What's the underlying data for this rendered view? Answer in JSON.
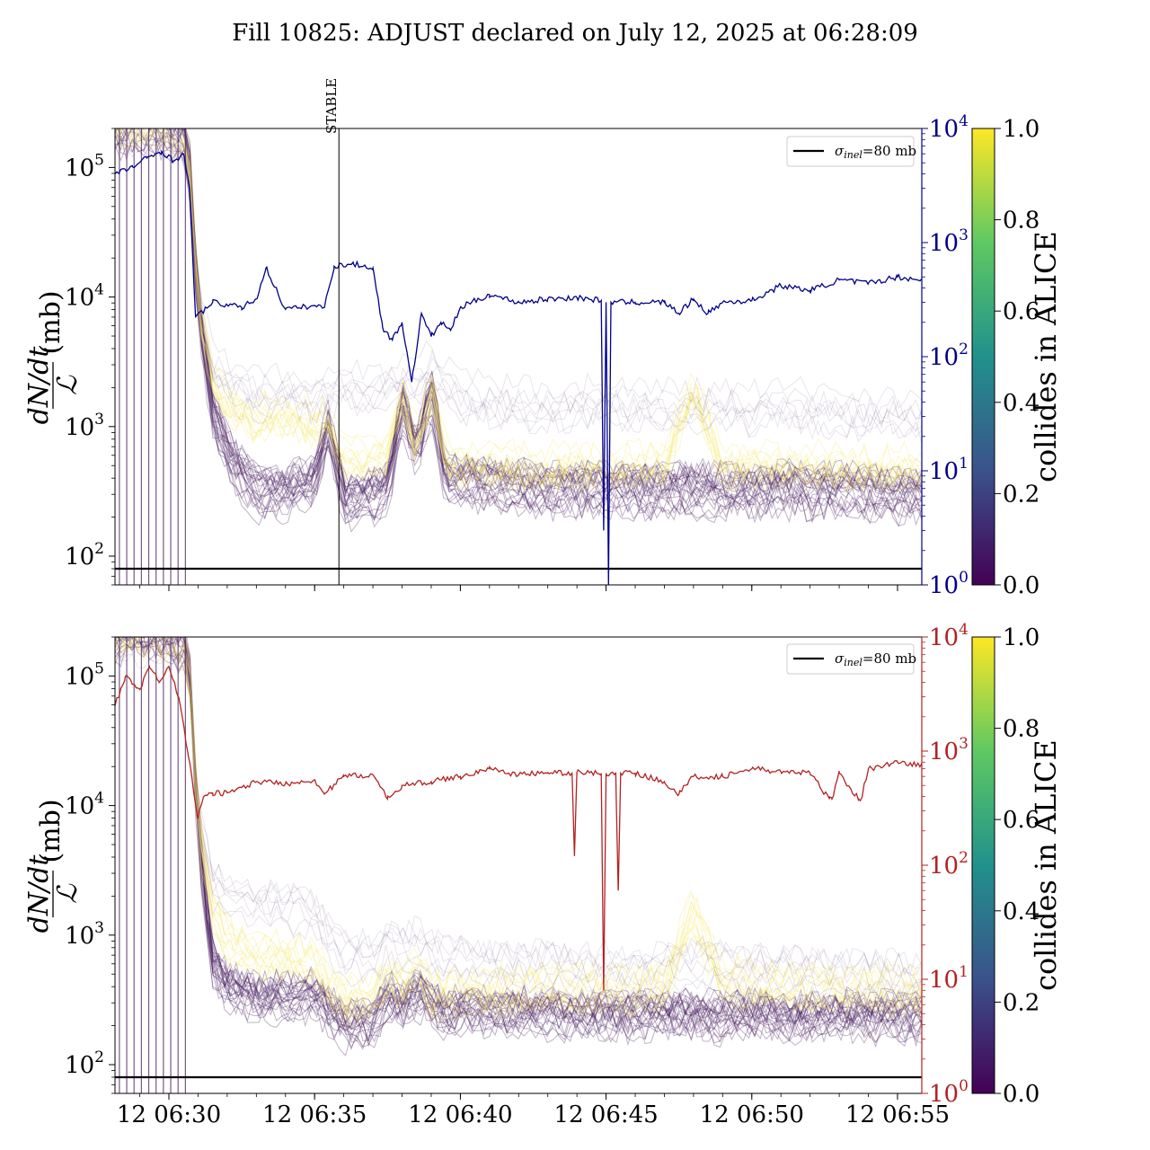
{
  "title": "Fill 10825: ADJUST declared on July 12, 2025 at 06:28:09",
  "colors": {
    "upper_right_axis": "#00008b",
    "lower_right_axis": "#b22222",
    "low_bunch": "#4b1f62",
    "high_bunch": "#f5e86a",
    "colorbar_stops": [
      "#440154",
      "#3b528b",
      "#21918c",
      "#5ec962",
      "#fde725"
    ]
  },
  "chart_data": [
    {
      "type": "line",
      "panel": "top",
      "ylabel_unit": "(mb)",
      "ylabel_formula": "dN/dt / L",
      "left_axis": {
        "scale": "log",
        "ylim": [
          60,
          200000
        ],
        "ticks": [
          {
            "base": "10",
            "exp": "2"
          },
          {
            "base": "10",
            "exp": "3"
          },
          {
            "base": "10",
            "exp": "4"
          },
          {
            "base": "10",
            "exp": "5"
          }
        ]
      },
      "right_axis": {
        "scale": "log",
        "ylim": [
          1,
          10000
        ],
        "color": "#00008b",
        "ticks": [
          {
            "base": "10",
            "exp": "0"
          },
          {
            "base": "10",
            "exp": "1"
          },
          {
            "base": "10",
            "exp": "2"
          },
          {
            "base": "10",
            "exp": "3"
          },
          {
            "base": "10",
            "exp": "4"
          }
        ]
      },
      "xlim": [
        "06:28:09",
        "06:55:50"
      ],
      "legend": {
        "placement": "top-right",
        "label_prefix": "σ",
        "label_sub": "inel",
        "label_suffix": "=80 mb"
      },
      "reference_line": 80,
      "annotation": {
        "label": "STABLE",
        "time": "06:35:50"
      },
      "colorbar": {
        "label": "collides in ALICE",
        "ticks": [
          "0.0",
          "0.2",
          "0.4",
          "0.6",
          "0.8",
          "1.0"
        ]
      },
      "right_series": {
        "t": [
          "06:28:09",
          "06:28:45",
          "06:29:15",
          "06:29:45",
          "06:30:10",
          "06:30:30",
          "06:30:42",
          "06:30:55",
          "06:31:30",
          "06:32:30",
          "06:33:00",
          "06:33:20",
          "06:34:00",
          "06:35:00",
          "06:35:20",
          "06:35:40",
          "06:36:20",
          "06:37:00",
          "06:37:20",
          "06:37:40",
          "06:38:00",
          "06:38:20",
          "06:38:40",
          "06:39:00",
          "06:39:20",
          "06:39:40",
          "06:40:00",
          "06:41:00",
          "06:42:00",
          "06:43:00",
          "06:44:00",
          "06:44:50",
          "06:44:55",
          "06:45:00",
          "06:45:05",
          "06:45:10",
          "06:46:00",
          "06:47:00",
          "06:47:30",
          "06:48:00",
          "06:48:30",
          "06:49:00",
          "06:50:00",
          "06:51:00",
          "06:52:00",
          "06:53:00",
          "06:54:00",
          "06:55:00",
          "06:55:50"
        ],
        "v": [
          4000,
          4600,
          5500,
          6300,
          5200,
          6000,
          3000,
          220,
          300,
          270,
          320,
          600,
          260,
          280,
          270,
          620,
          650,
          600,
          180,
          140,
          200,
          60,
          240,
          150,
          200,
          170,
          270,
          350,
          300,
          320,
          330,
          310,
          3,
          300,
          1,
          300,
          300,
          300,
          240,
          320,
          240,
          300,
          310,
          420,
          380,
          470,
          440,
          500,
          470
        ]
      },
      "bunch_series": {
        "t": [
          "06:28:09",
          "06:29:00",
          "06:30:00",
          "06:30:40",
          "06:31:00",
          "06:31:30",
          "06:32:00",
          "06:33:00",
          "06:34:00",
          "06:35:00",
          "06:35:30",
          "06:36:00",
          "06:37:00",
          "06:37:30",
          "06:38:00",
          "06:38:30",
          "06:39:00",
          "06:39:30",
          "06:40:00",
          "06:41:00",
          "06:42:00",
          "06:43:00",
          "06:44:00",
          "06:45:00",
          "06:46:00",
          "06:47:00",
          "06:48:00",
          "06:49:00",
          "06:50:00",
          "06:51:00",
          "06:52:00",
          "06:53:00",
          "06:54:00",
          "06:55:00",
          "06:55:50"
        ],
        "low": [
          200000,
          200000,
          200000,
          150000,
          8000,
          1300,
          600,
          300,
          310,
          380,
          1000,
          260,
          290,
          330,
          1500,
          600,
          1800,
          380,
          380,
          350,
          340,
          320,
          330,
          330,
          320,
          320,
          330,
          320,
          310,
          330,
          320,
          320,
          310,
          300,
          290
        ],
        "high": [
          200000,
          200000,
          200000,
          150000,
          9000,
          2200,
          1500,
          1100,
          1200,
          1000,
          1100,
          520,
          560,
          600,
          1800,
          700,
          2000,
          500,
          500,
          480,
          470,
          460,
          480,
          470,
          470,
          500,
          2000,
          470,
          500,
          480,
          470,
          470,
          460,
          450,
          440
        ],
        "upper": [
          200000,
          200000,
          200000,
          150000,
          9500,
          3000,
          2200,
          1800,
          2000,
          1700,
          1900,
          2000,
          2100,
          2000,
          2600,
          2300,
          3000,
          2400,
          1700,
          1600,
          1500,
          1500,
          1500,
          1600,
          1500,
          1500,
          1400,
          1500,
          1400,
          1500,
          1400,
          1400,
          1300,
          1300,
          1200
        ]
      }
    },
    {
      "type": "line",
      "panel": "bottom",
      "ylabel_unit": "(mb)",
      "ylabel_formula": "dN/dt / L",
      "left_axis": {
        "scale": "log",
        "ylim": [
          60,
          200000
        ],
        "ticks": [
          {
            "base": "10",
            "exp": "2"
          },
          {
            "base": "10",
            "exp": "3"
          },
          {
            "base": "10",
            "exp": "4"
          },
          {
            "base": "10",
            "exp": "5"
          }
        ]
      },
      "right_axis": {
        "scale": "log",
        "ylim": [
          1,
          10000
        ],
        "color": "#b22222",
        "ticks": [
          {
            "base": "10",
            "exp": "0"
          },
          {
            "base": "10",
            "exp": "1"
          },
          {
            "base": "10",
            "exp": "2"
          },
          {
            "base": "10",
            "exp": "3"
          },
          {
            "base": "10",
            "exp": "4"
          }
        ]
      },
      "xlim": [
        "06:28:09",
        "06:55:50"
      ],
      "x_tick_labels": [
        {
          "label": "12 06:30",
          "time": "06:30:00"
        },
        {
          "label": "12 06:35",
          "time": "06:35:00"
        },
        {
          "label": "12 06:40",
          "time": "06:40:00"
        },
        {
          "label": "12 06:45",
          "time": "06:45:00"
        },
        {
          "label": "12 06:50",
          "time": "06:50:00"
        },
        {
          "label": "12 06:55",
          "time": "06:55:00"
        }
      ],
      "legend": {
        "placement": "top-right",
        "label_prefix": "σ",
        "label_sub": "inel",
        "label_suffix": "=80 mb"
      },
      "reference_line": 80,
      "colorbar": {
        "label": "collides in ALICE",
        "ticks": [
          "0.0",
          "0.2",
          "0.4",
          "0.6",
          "0.8",
          "1.0"
        ]
      },
      "right_series": {
        "t": [
          "06:28:09",
          "06:28:30",
          "06:29:00",
          "06:29:20",
          "06:29:40",
          "06:30:00",
          "06:30:20",
          "06:30:40",
          "06:31:00",
          "06:31:10",
          "06:31:30",
          "06:32:00",
          "06:32:30",
          "06:33:00",
          "06:34:00",
          "06:35:00",
          "06:35:20",
          "06:36:00",
          "06:37:00",
          "06:37:30",
          "06:38:00",
          "06:39:00",
          "06:40:00",
          "06:41:00",
          "06:42:00",
          "06:43:00",
          "06:43:50",
          "06:43:55",
          "06:44:00",
          "06:44:50",
          "06:44:55",
          "06:45:00",
          "06:45:20",
          "06:45:25",
          "06:45:30",
          "06:46:00",
          "06:47:00",
          "06:47:30",
          "06:48:00",
          "06:49:00",
          "06:50:00",
          "06:51:00",
          "06:52:00",
          "06:52:40",
          "06:52:45",
          "06:53:00",
          "06:53:40",
          "06:53:45",
          "06:54:00",
          "06:55:00",
          "06:55:50"
        ],
        "v": [
          2500,
          4500,
          3500,
          5500,
          4000,
          5500,
          3000,
          900,
          260,
          380,
          430,
          430,
          480,
          540,
          520,
          560,
          420,
          600,
          620,
          380,
          500,
          540,
          600,
          700,
          620,
          650,
          640,
          120,
          650,
          640,
          8,
          640,
          640,
          60,
          640,
          640,
          540,
          420,
          600,
          600,
          700,
          660,
          640,
          380,
          380,
          640,
          380,
          380,
          700,
          800,
          750
        ]
      },
      "bunch_series": {
        "t": [
          "06:28:09",
          "06:29:00",
          "06:30:00",
          "06:30:40",
          "06:31:00",
          "06:31:30",
          "06:32:00",
          "06:33:00",
          "06:34:00",
          "06:35:00",
          "06:35:30",
          "06:36:00",
          "06:37:00",
          "06:37:30",
          "06:38:00",
          "06:38:30",
          "06:39:00",
          "06:39:30",
          "06:40:00",
          "06:41:00",
          "06:42:00",
          "06:43:00",
          "06:44:00",
          "06:45:00",
          "06:46:00",
          "06:47:00",
          "06:48:00",
          "06:49:00",
          "06:50:00",
          "06:51:00",
          "06:52:00",
          "06:53:00",
          "06:54:00",
          "06:55:00",
          "06:55:50"
        ],
        "low": [
          200000,
          200000,
          200000,
          150000,
          6000,
          600,
          400,
          330,
          320,
          340,
          260,
          200,
          200,
          350,
          280,
          360,
          280,
          250,
          260,
          260,
          250,
          250,
          240,
          240,
          240,
          240,
          240,
          230,
          240,
          230,
          230,
          230,
          230,
          230,
          220
        ],
        "high": [
          200000,
          200000,
          200000,
          150000,
          7000,
          1500,
          900,
          700,
          650,
          600,
          380,
          300,
          320,
          500,
          400,
          520,
          330,
          330,
          350,
          360,
          360,
          380,
          370,
          380,
          380,
          400,
          1500,
          420,
          400,
          380,
          370,
          380,
          380,
          360,
          360
        ],
        "upper": [
          200000,
          200000,
          200000,
          150000,
          7500,
          2500,
          2000,
          1800,
          1700,
          1500,
          900,
          700,
          700,
          900,
          800,
          900,
          700,
          650,
          650,
          600,
          560,
          600,
          560,
          560,
          540,
          560,
          650,
          560,
          540,
          560,
          520,
          520,
          500,
          500,
          480
        ]
      }
    }
  ]
}
